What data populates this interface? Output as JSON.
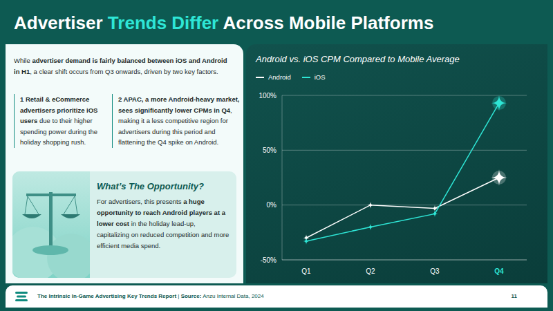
{
  "title": {
    "before": "Advertiser",
    "highlight": "Trends Differ",
    "after": "Across Mobile Platforms"
  },
  "intro": [
    "While ",
    {
      "strong": "advertiser demand is fairly balanced between iOS and Android in H1"
    },
    ", a clear shift occurs from Q3 onwards, driven by two key factors."
  ],
  "points": [
    {
      "number": 1,
      "text": [
        {
          "strong": "Retail & eCommerce advertisers prioritize iOS users"
        },
        " due to their higher spending power during the holiday shopping rush."
      ]
    },
    {
      "number": 2,
      "text": [
        {
          "strong": "APAC, a more Android-heavy market, sees significantly lower CPMs in Q4"
        },
        ", making it a less competitive region for advertisers during this period and flattening the Q4 spike on Android."
      ]
    }
  ],
  "opportunity": {
    "heading": "What’s The Opportunity?",
    "body": [
      "For advertisers, this presents ",
      {
        "strong": "a huge opportunity to reach Android players at a lower cost"
      },
      " in the holiday lead-up, capitalizing on reduced competition and more efficient media spend."
    ]
  },
  "footer": {
    "report": "The Intrinsic In-Game Advertising Key Trends Report",
    "separator": "|",
    "source_label": "Source:",
    "source": "Anzu Internal Data, 2024",
    "page": 11
  },
  "chart_data": {
    "type": "line",
    "title": "Android vs. iOS CPM Compared to Mobile Average",
    "categories": [
      "Q1",
      "Q2",
      "Q3",
      "Q4"
    ],
    "series": [
      {
        "name": "Android",
        "color": "#ffffff",
        "marker": "star",
        "values": [
          -30,
          0,
          -3,
          25
        ]
      },
      {
        "name": "iOS",
        "color": "#2ee6d6",
        "marker": "star",
        "values": [
          -33,
          -20,
          -8,
          93
        ]
      }
    ],
    "ylim": [
      -50,
      100
    ],
    "yticks": [
      {
        "value": -50,
        "label": "-50%"
      },
      {
        "value": 0,
        "label": "0%"
      },
      {
        "value": 50,
        "label": "50%"
      },
      {
        "value": 100,
        "label": "100%"
      }
    ],
    "grid": true,
    "legend": "top-left"
  }
}
